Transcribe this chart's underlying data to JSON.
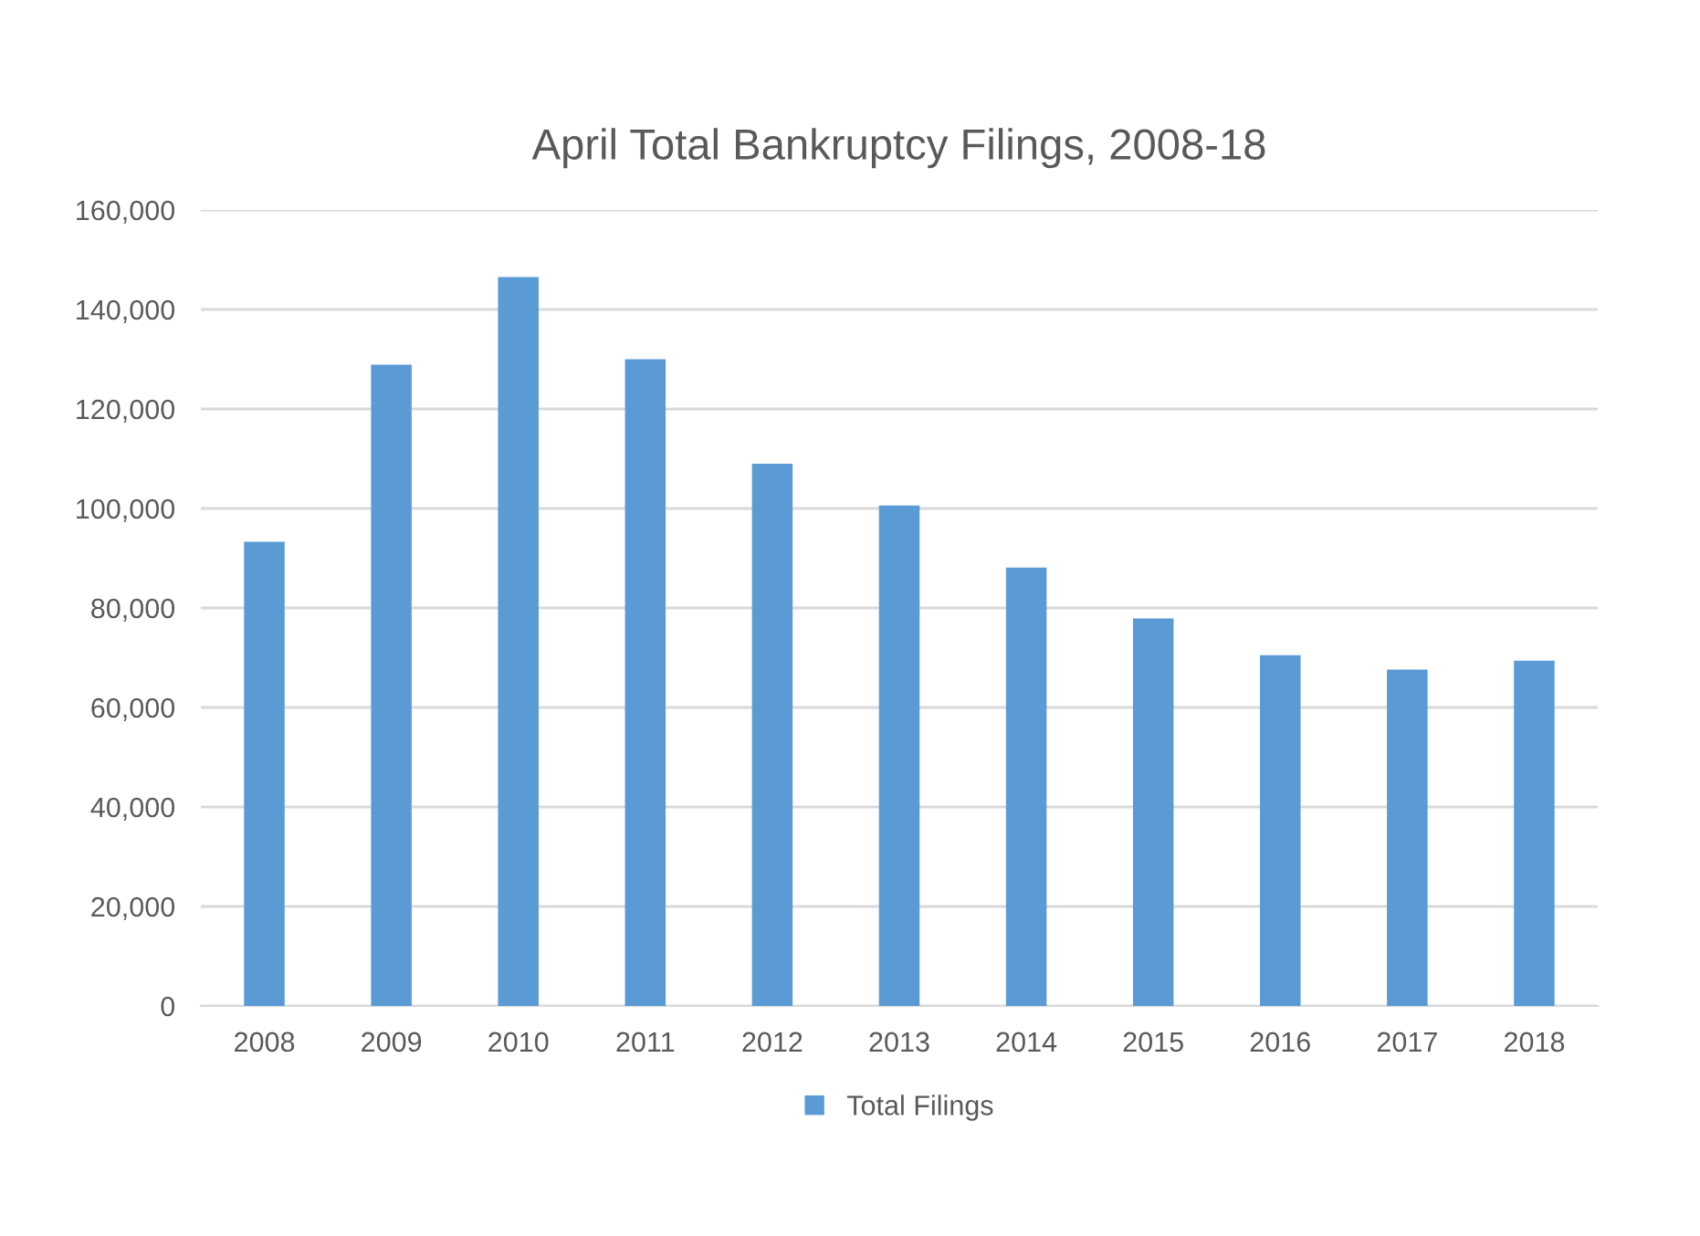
{
  "chart_data": {
    "type": "bar",
    "title": "April Total Bankruptcy Filings, 2008-18",
    "categories": [
      "2008",
      "2009",
      "2010",
      "2011",
      "2012",
      "2013",
      "2014",
      "2015",
      "2016",
      "2017",
      "2018"
    ],
    "series": [
      {
        "name": "Total Filings",
        "color": "#5b9bd5",
        "values": [
          93300,
          128900,
          146500,
          130000,
          109000,
          100600,
          88100,
          77900,
          70500,
          67600,
          69400
        ]
      }
    ],
    "ylim": [
      0,
      160000
    ],
    "yticks": [
      {
        "value": 0,
        "label": "0"
      },
      {
        "value": 20000,
        "label": "20,000"
      },
      {
        "value": 40000,
        "label": "40,000"
      },
      {
        "value": 60000,
        "label": "60,000"
      },
      {
        "value": 80000,
        "label": "80,000"
      },
      {
        "value": 100000,
        "label": "100,000"
      },
      {
        "value": 120000,
        "label": "120,000"
      },
      {
        "value": 140000,
        "label": "140,000"
      },
      {
        "value": 160000,
        "label": "160,000"
      }
    ],
    "grid": "y",
    "legend": "bottom"
  }
}
